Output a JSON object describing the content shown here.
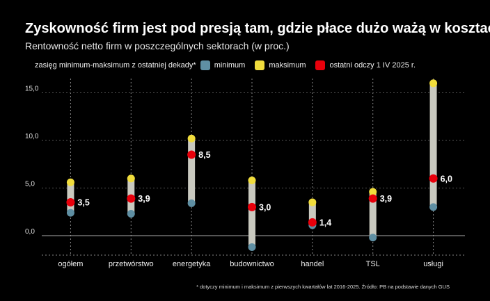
{
  "title": "Zyskowność firm jest pod presją tam, gdzie płace dużo ważą w kosztach",
  "subtitle": "Rentowność netto firm w poszczególnych sektorach (w proc.)",
  "legend": {
    "range_label": "zasięg minimum-maksimum z ostatniej dekady*",
    "min_label": "minimum",
    "max_label": "maksimum",
    "last_label": "ostatni odczy 1 IV 2025 r."
  },
  "source": "* dotyczy minimum i maksimum z pierwszych kwartałów lat 2016-2025. Źródło: PB na podstawie danych GUS",
  "colors": {
    "background": "#000000",
    "range_bar": "#c9c9bf",
    "minimum": "#5f8fa3",
    "maximum": "#f0dc3c",
    "last": "#e8000b",
    "zero_line": "#aaaaaa",
    "grid": "#888888"
  },
  "chart_data": {
    "type": "range-dot",
    "categories": [
      "ogółem",
      "przetwórstwo",
      "energetyka",
      "budownictwo",
      "handel",
      "TSL",
      "usługi"
    ],
    "minimum": [
      2.4,
      2.3,
      3.4,
      -1.2,
      1.1,
      -0.2,
      3.0
    ],
    "maximum": [
      5.6,
      6.0,
      10.2,
      5.8,
      3.5,
      4.6,
      16.0
    ],
    "last": [
      3.5,
      3.9,
      8.5,
      3.0,
      1.4,
      3.9,
      6.0
    ],
    "last_labels": [
      "3,5",
      "3,9",
      "8,5",
      "3,0",
      "1,4",
      "3,9",
      "6,0"
    ],
    "y_ticks": [
      0,
      5,
      10,
      15
    ],
    "y_tick_labels": [
      "0,0",
      "5,0",
      "10,0",
      "15,0"
    ],
    "ylim": [
      -2,
      16.5
    ],
    "grid": "vertical dashed",
    "legend_position": "top"
  }
}
